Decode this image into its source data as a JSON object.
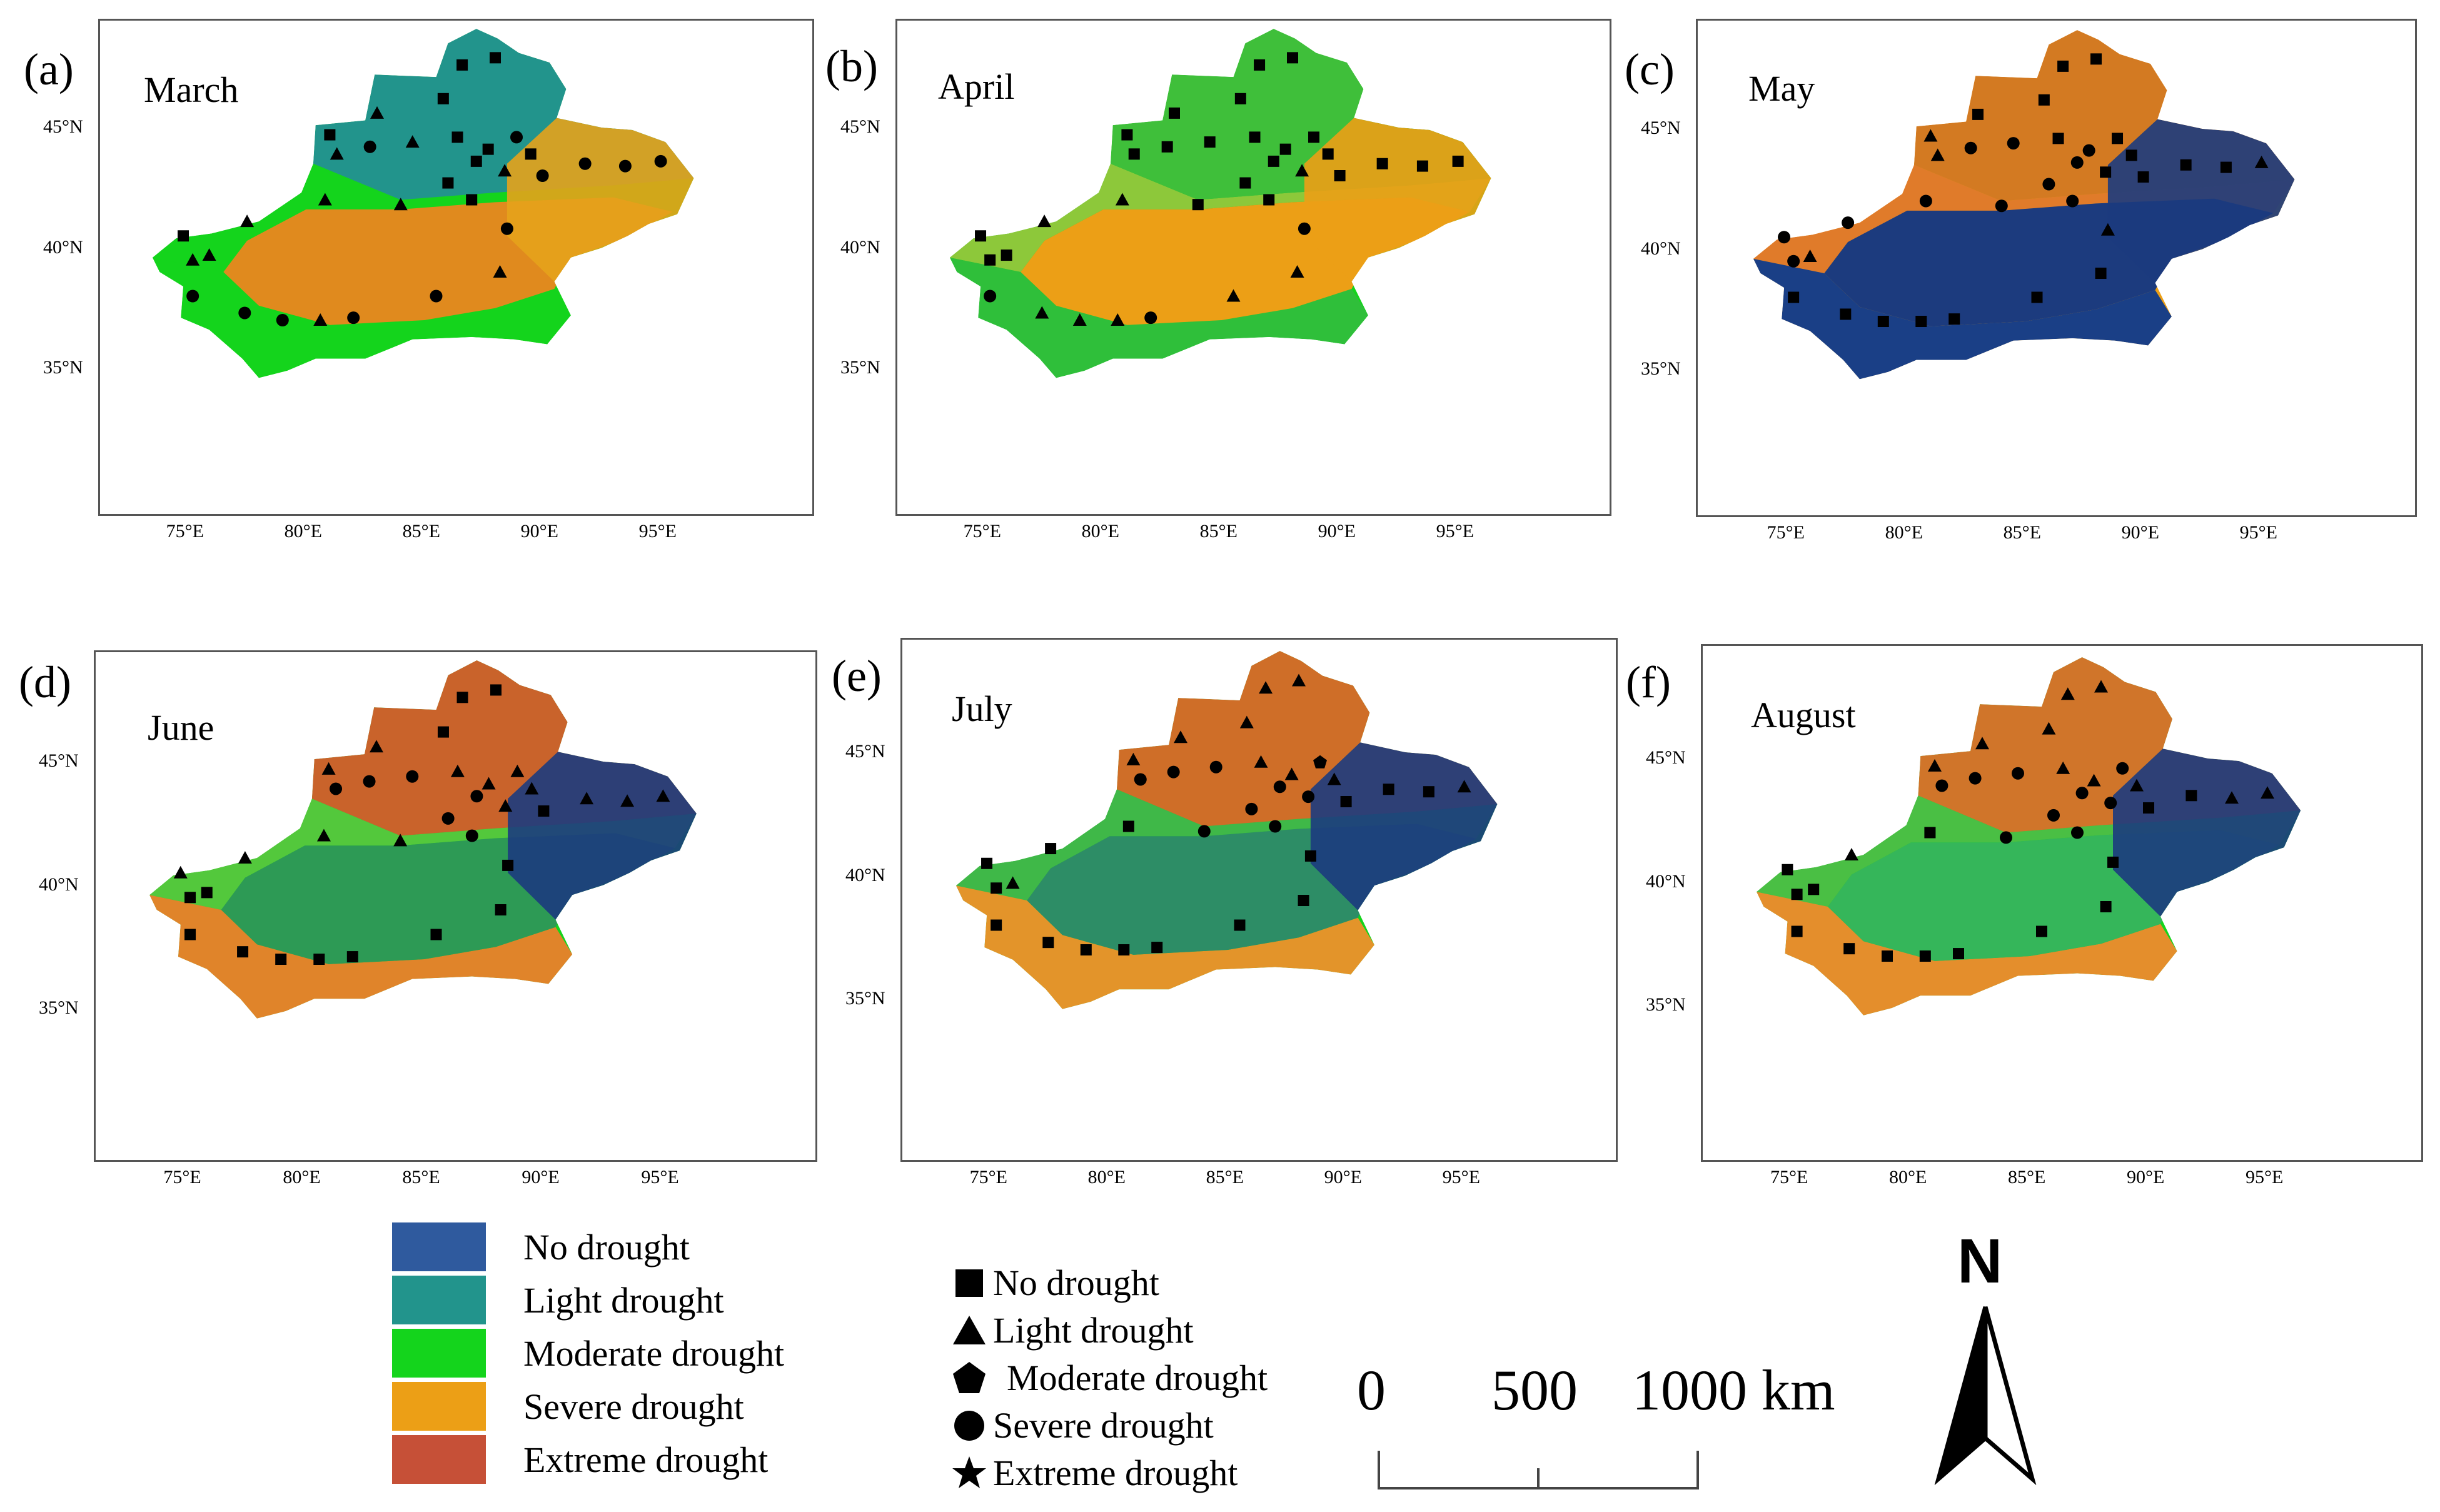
{
  "panels": [
    {
      "label": "(a)",
      "month": "March",
      "scheme": "march"
    },
    {
      "label": "(b)",
      "month": "April",
      "scheme": "april"
    },
    {
      "label": "(c)",
      "month": "May",
      "scheme": "may"
    },
    {
      "label": "(d)",
      "month": "June",
      "scheme": "june"
    },
    {
      "label": "(e)",
      "month": "July",
      "scheme": "july"
    },
    {
      "label": "(f)",
      "month": "August",
      "scheme": "august"
    }
  ],
  "axis": {
    "lon_ticks": [
      "75°E",
      "80°E",
      "85°E",
      "90°E",
      "95°E"
    ],
    "lat_ticks": [
      "45°N",
      "40°N",
      "35°N"
    ]
  },
  "raster_legend": [
    {
      "label": "No drought",
      "color": "#2f5a9e"
    },
    {
      "label": "Light drought",
      "color": "#22948c"
    },
    {
      "label": "Moderate drought",
      "color": "#14d41c"
    },
    {
      "label": "Severe drought",
      "color": "#ec9f16"
    },
    {
      "label": "Extreme drought",
      "color": "#c65037"
    }
  ],
  "station_legend": [
    {
      "label": "No drought",
      "symbol": "square"
    },
    {
      "label": "Light drought",
      "symbol": "triangle"
    },
    {
      "label": "Moderate drought",
      "symbol": "pentagon"
    },
    {
      "label": "Severe drought",
      "symbol": "circle"
    },
    {
      "label": "Extreme drought",
      "symbol": "star"
    }
  ],
  "scale_bar": {
    "labels": [
      "0",
      "500",
      "1000 km"
    ]
  },
  "north_arrow": {
    "label": "N"
  }
}
